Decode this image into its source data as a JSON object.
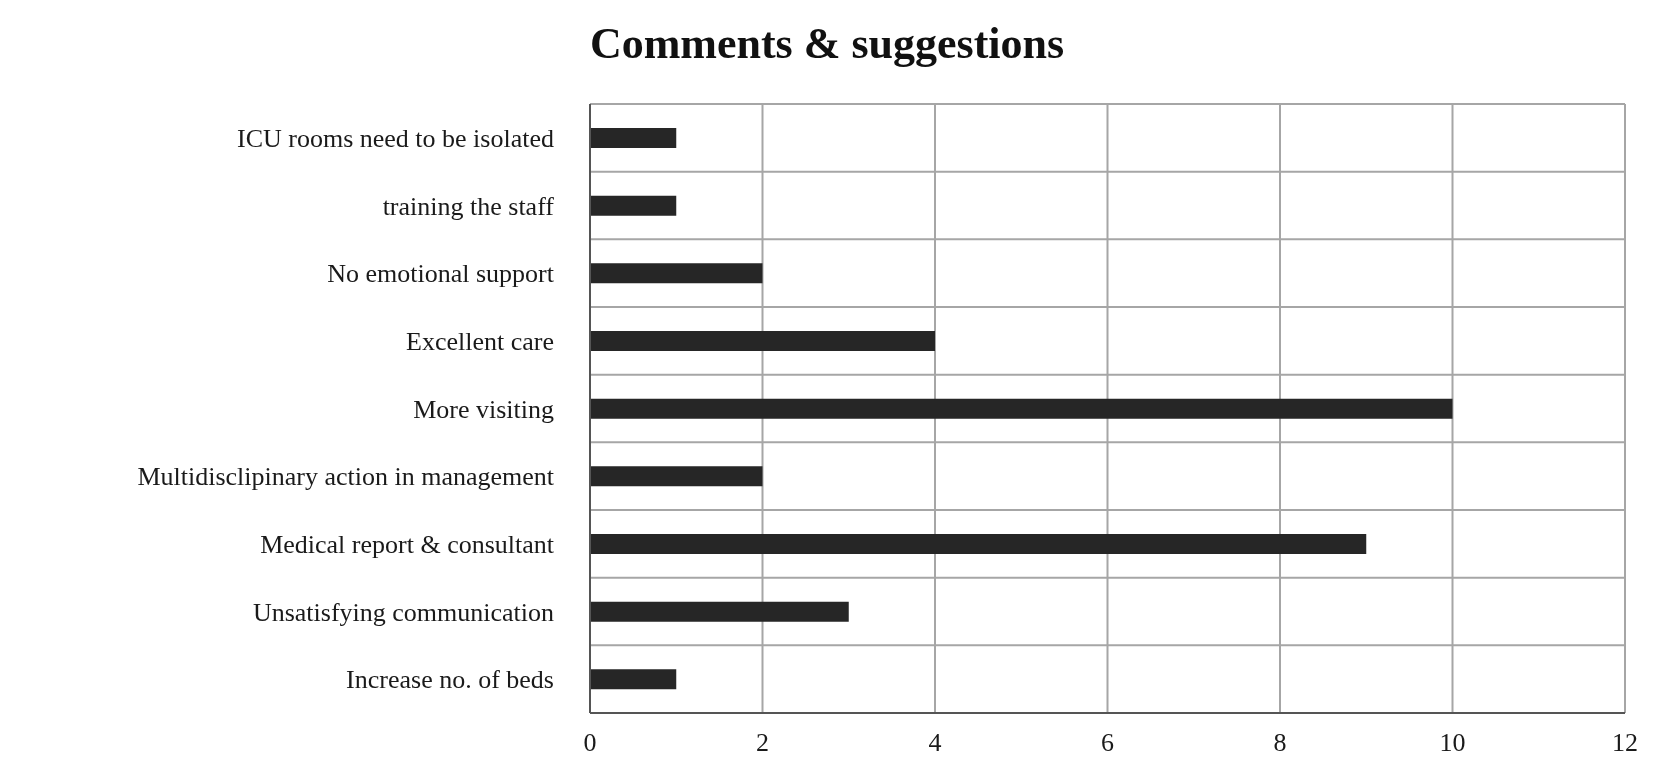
{
  "chart_data": {
    "type": "bar",
    "orientation": "horizontal",
    "title": "Comments & suggestions",
    "categories": [
      "ICU rooms need to be isolated",
      "training the staff",
      "No emotional support",
      "Excellent care",
      "More visiting",
      "Multidisclipinary action in management",
      "Medical report & consultant",
      "Unsatisfying communication",
      "Increase no. of beds"
    ],
    "values": [
      1,
      1,
      2,
      4,
      10,
      2,
      9,
      3,
      1
    ],
    "color": "#262626",
    "xlim": [
      0,
      12
    ],
    "xticks": [
      0,
      2,
      4,
      6,
      8,
      10,
      12
    ],
    "grid": true
  }
}
